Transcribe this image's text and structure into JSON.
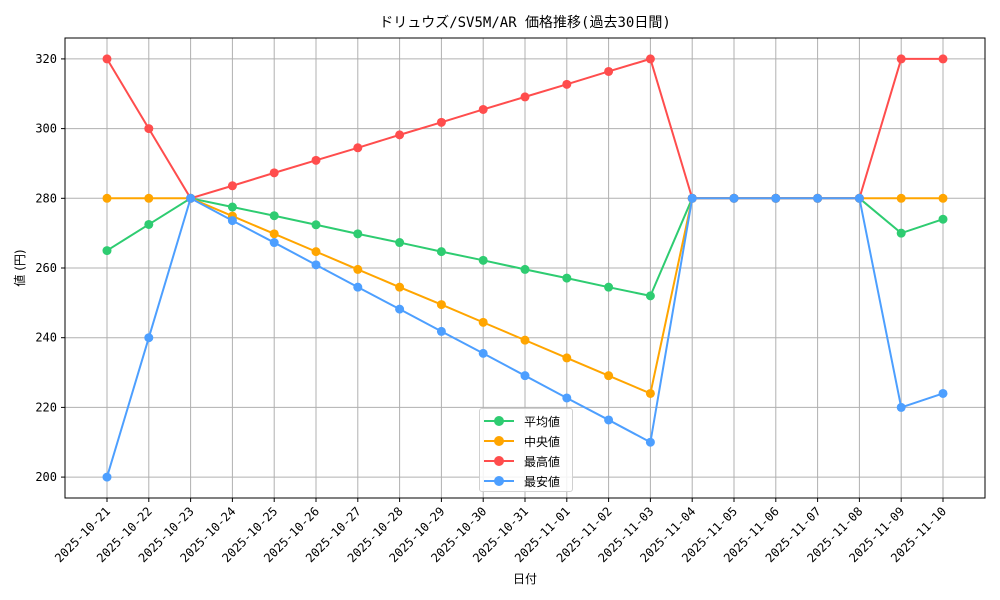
{
  "chart_data": {
    "type": "line",
    "title": "ドリュウズ/SV5M/AR 価格推移(過去30日間)",
    "xlabel": "日付",
    "ylabel": "値 (円)",
    "ylim": [
      194,
      326
    ],
    "yticks": [
      200,
      220,
      240,
      260,
      280,
      300,
      320
    ],
    "grid": true,
    "legend_position": "lower center",
    "categories": [
      "2025-10-21",
      "2025-10-22",
      "2025-10-23",
      "2025-10-24",
      "2025-10-25",
      "2025-10-26",
      "2025-10-27",
      "2025-10-28",
      "2025-10-29",
      "2025-10-30",
      "2025-10-31",
      "2025-11-01",
      "2025-11-02",
      "2025-11-03",
      "2025-11-04",
      "2025-11-05",
      "2025-11-06",
      "2025-11-07",
      "2025-11-08",
      "2025-11-09",
      "2025-11-10"
    ],
    "series": [
      {
        "name": "平均値",
        "color": "#2ecc71",
        "values": [
          265,
          272.5,
          280,
          277.5,
          275,
          272.4,
          269.8,
          267.3,
          264.7,
          262.2,
          259.6,
          257.1,
          254.5,
          252,
          280,
          280,
          280,
          280,
          280,
          270,
          274
        ]
      },
      {
        "name": "中央値",
        "color": "#ffa500",
        "values": [
          280,
          280,
          280,
          274.9,
          269.8,
          264.7,
          259.6,
          254.5,
          249.5,
          244.4,
          239.3,
          234.2,
          229.1,
          224,
          280,
          280,
          280,
          280,
          280,
          280,
          280
        ]
      },
      {
        "name": "最高値",
        "color": "#ff4d4d",
        "values": [
          320,
          300,
          280,
          283.6,
          287.3,
          290.9,
          294.5,
          298.2,
          301.8,
          305.5,
          309.1,
          312.7,
          316.4,
          320,
          280,
          280,
          280,
          280,
          280,
          320,
          320
        ]
      },
      {
        "name": "最安値",
        "color": "#4d9fff",
        "values": [
          200,
          240,
          280,
          273.6,
          267.3,
          260.9,
          254.5,
          248.2,
          241.8,
          235.5,
          229.1,
          222.7,
          216.4,
          210,
          280,
          280,
          280,
          280,
          280,
          220,
          224
        ]
      }
    ]
  },
  "legend": {
    "items": [
      {
        "label": "平均値",
        "color": "#2ecc71"
      },
      {
        "label": "中央値",
        "color": "#ffa500"
      },
      {
        "label": "最高値",
        "color": "#ff4d4d"
      },
      {
        "label": "最安値",
        "color": "#4d9fff"
      }
    ]
  }
}
